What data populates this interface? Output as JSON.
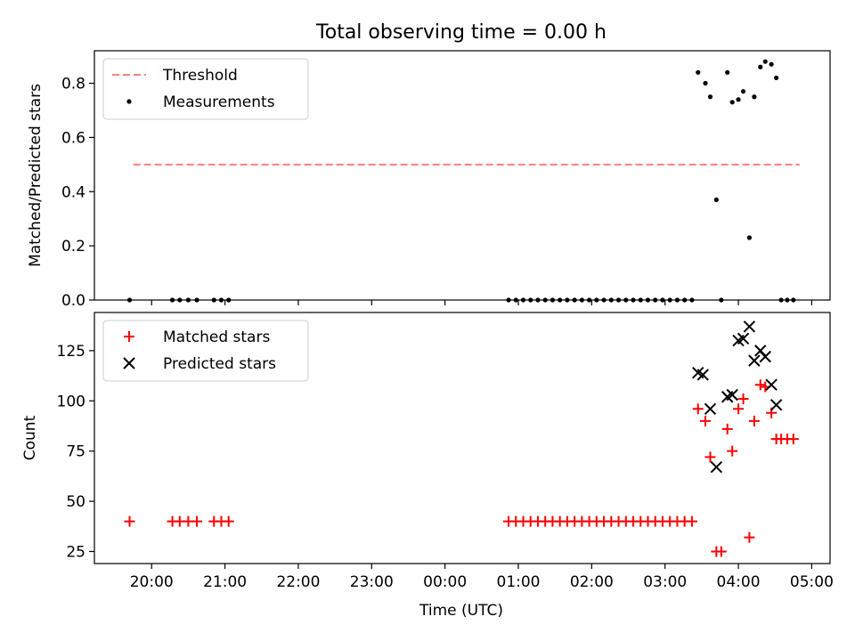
{
  "chart_data": [
    {
      "type": "scatter",
      "title": "Total observing time = 0.00 h",
      "ylabel": "Matched/Predicted stars",
      "xlabel": "",
      "ylim": [
        0,
        0.92
      ],
      "yticks": [
        "0.0",
        "0.2",
        "0.4",
        "0.6",
        "0.8"
      ],
      "legend_position": "top-left",
      "series": [
        {
          "name": "Threshold",
          "kind": "line",
          "style": "dashed",
          "color": "#ff7f7f",
          "x": [
            "19:45",
            "04:50"
          ],
          "y": [
            0.5,
            0.5
          ]
        },
        {
          "name": "Measurements",
          "kind": "scatter",
          "color": "#000000",
          "points": [
            [
              "19:42",
              0.0
            ],
            [
              "20:17",
              0.0
            ],
            [
              "20:23",
              0.0
            ],
            [
              "20:30",
              0.0
            ],
            [
              "20:37",
              0.0
            ],
            [
              "20:51",
              0.0
            ],
            [
              "20:57",
              0.0
            ],
            [
              "21:03",
              0.0
            ],
            [
              "00:52",
              0.0
            ],
            [
              "00:58",
              0.0
            ],
            [
              "01:04",
              0.0
            ],
            [
              "01:10",
              0.0
            ],
            [
              "01:16",
              0.0
            ],
            [
              "01:22",
              0.0
            ],
            [
              "01:28",
              0.0
            ],
            [
              "01:34",
              0.0
            ],
            [
              "01:40",
              0.0
            ],
            [
              "01:46",
              0.0
            ],
            [
              "01:52",
              0.0
            ],
            [
              "01:58",
              0.0
            ],
            [
              "02:04",
              0.0
            ],
            [
              "02:10",
              0.0
            ],
            [
              "02:16",
              0.0
            ],
            [
              "02:22",
              0.0
            ],
            [
              "02:28",
              0.0
            ],
            [
              "02:34",
              0.0
            ],
            [
              "02:40",
              0.0
            ],
            [
              "02:46",
              0.0
            ],
            [
              "02:52",
              0.0
            ],
            [
              "02:58",
              0.0
            ],
            [
              "03:04",
              0.0
            ],
            [
              "03:10",
              0.0
            ],
            [
              "03:16",
              0.0
            ],
            [
              "03:22",
              0.0
            ],
            [
              "03:27",
              0.84
            ],
            [
              "03:33",
              0.8
            ],
            [
              "03:37",
              0.75
            ],
            [
              "03:42",
              0.37
            ],
            [
              "03:46",
              0.0
            ],
            [
              "03:51",
              0.84
            ],
            [
              "03:55",
              0.73
            ],
            [
              "04:00",
              0.74
            ],
            [
              "04:04",
              0.77
            ],
            [
              "04:09",
              0.23
            ],
            [
              "04:13",
              0.75
            ],
            [
              "04:18",
              0.86
            ],
            [
              "04:22",
              0.88
            ],
            [
              "04:27",
              0.87
            ],
            [
              "04:31",
              0.82
            ],
            [
              "04:35",
              0.0
            ],
            [
              "04:40",
              0.0
            ],
            [
              "04:45",
              0.0
            ]
          ]
        }
      ]
    },
    {
      "type": "scatter",
      "title": "",
      "xlabel": "Time (UTC)",
      "ylabel": "Count",
      "ylim": [
        19,
        144
      ],
      "yticks": [
        "25",
        "50",
        "75",
        "100",
        "125"
      ],
      "xticks": [
        "20:00",
        "21:00",
        "22:00",
        "23:00",
        "00:00",
        "01:00",
        "02:00",
        "03:00",
        "04:00",
        "05:00"
      ],
      "legend_position": "top-left",
      "series": [
        {
          "name": "Matched stars",
          "kind": "scatter",
          "marker": "plus",
          "color": "#ff0000",
          "points": [
            [
              "19:42",
              40
            ],
            [
              "20:17",
              40
            ],
            [
              "20:23",
              40
            ],
            [
              "20:30",
              40
            ],
            [
              "20:37",
              40
            ],
            [
              "20:51",
              40
            ],
            [
              "20:57",
              40
            ],
            [
              "21:03",
              40
            ],
            [
              "00:52",
              40
            ],
            [
              "00:58",
              40
            ],
            [
              "01:04",
              40
            ],
            [
              "01:10",
              40
            ],
            [
              "01:16",
              40
            ],
            [
              "01:22",
              40
            ],
            [
              "01:28",
              40
            ],
            [
              "01:34",
              40
            ],
            [
              "01:40",
              40
            ],
            [
              "01:46",
              40
            ],
            [
              "01:52",
              40
            ],
            [
              "01:58",
              40
            ],
            [
              "02:04",
              40
            ],
            [
              "02:10",
              40
            ],
            [
              "02:16",
              40
            ],
            [
              "02:22",
              40
            ],
            [
              "02:28",
              40
            ],
            [
              "02:34",
              40
            ],
            [
              "02:40",
              40
            ],
            [
              "02:46",
              40
            ],
            [
              "02:52",
              40
            ],
            [
              "02:58",
              40
            ],
            [
              "03:04",
              40
            ],
            [
              "03:10",
              40
            ],
            [
              "03:16",
              40
            ],
            [
              "03:22",
              40
            ],
            [
              "03:27",
              96
            ],
            [
              "03:33",
              90
            ],
            [
              "03:37",
              72
            ],
            [
              "03:42",
              25
            ],
            [
              "03:46",
              25
            ],
            [
              "03:51",
              86
            ],
            [
              "03:55",
              75
            ],
            [
              "04:00",
              96
            ],
            [
              "04:04",
              101
            ],
            [
              "04:09",
              32
            ],
            [
              "04:13",
              90
            ],
            [
              "04:18",
              108
            ],
            [
              "04:22",
              107
            ],
            [
              "04:27",
              94
            ],
            [
              "04:31",
              81
            ],
            [
              "04:35",
              81
            ],
            [
              "04:40",
              81
            ],
            [
              "04:45",
              81
            ]
          ]
        },
        {
          "name": "Predicted stars",
          "kind": "scatter",
          "marker": "x",
          "color": "#000000",
          "points": [
            [
              "03:27",
              114
            ],
            [
              "03:31",
              113
            ],
            [
              "03:37",
              96
            ],
            [
              "03:42",
              67
            ],
            [
              "03:51",
              102
            ],
            [
              "03:55",
              103
            ],
            [
              "04:00",
              130
            ],
            [
              "04:04",
              131
            ],
            [
              "04:09",
              137
            ],
            [
              "04:13",
              120
            ],
            [
              "04:18",
              125
            ],
            [
              "04:22",
              122
            ],
            [
              "04:27",
              108
            ],
            [
              "04:31",
              98
            ]
          ]
        }
      ]
    }
  ]
}
